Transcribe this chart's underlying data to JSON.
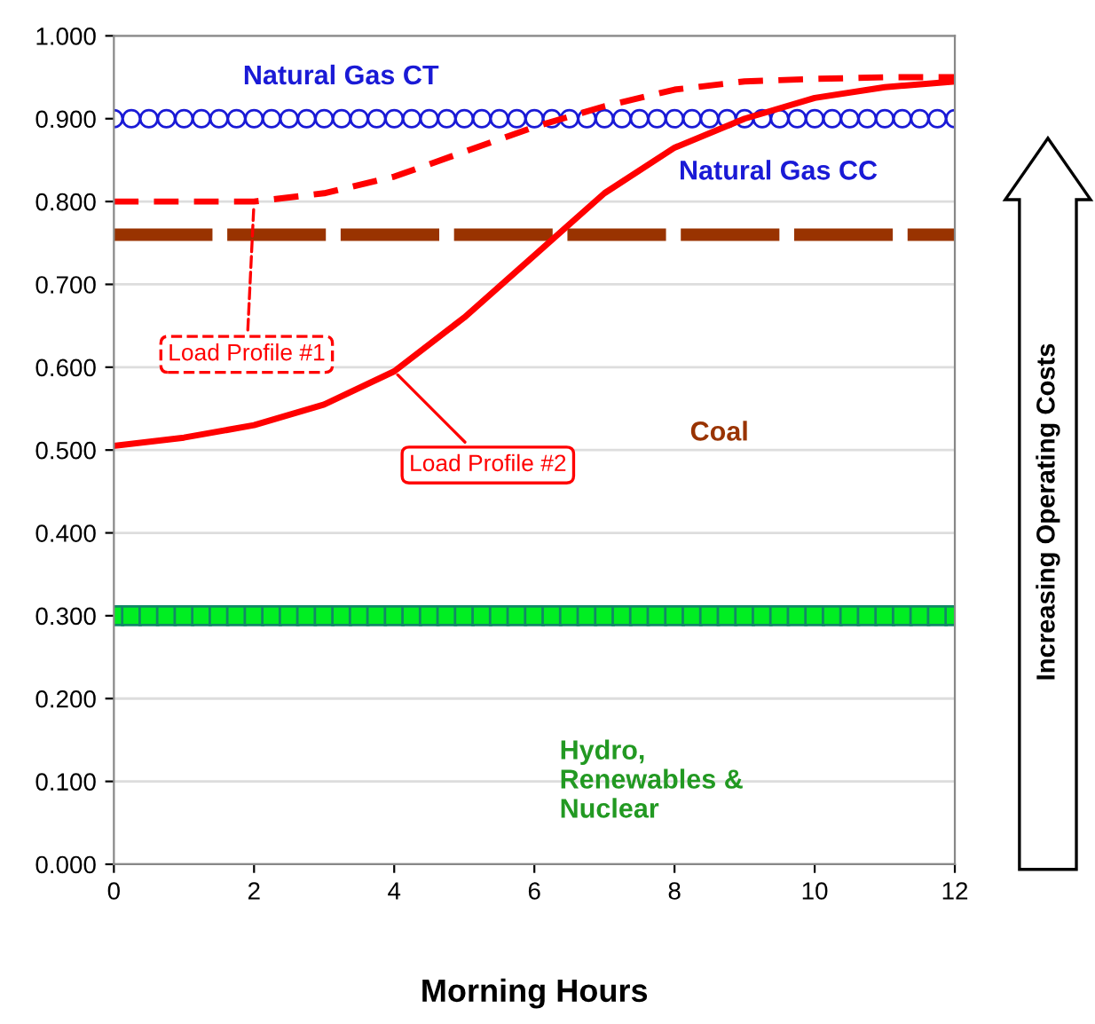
{
  "chart_data": {
    "type": "line",
    "xlabel": "Morning Hours",
    "xlim": [
      0,
      12
    ],
    "xticks": [
      0,
      2,
      4,
      6,
      8,
      10,
      12
    ],
    "ylim": [
      0,
      1
    ],
    "yticks": [
      {
        "value": 0,
        "label": "0.000"
      },
      {
        "value": 0.1,
        "label": "0.100"
      },
      {
        "value": 0.2,
        "label": "0.200"
      },
      {
        "value": 0.3,
        "label": "0.300"
      },
      {
        "value": 0.4,
        "label": "0.400"
      },
      {
        "value": 0.5,
        "label": "0.500"
      },
      {
        "value": 0.6,
        "label": "0.600"
      },
      {
        "value": 0.7,
        "label": "0.700"
      },
      {
        "value": 0.8,
        "label": "0.800"
      },
      {
        "value": 0.9,
        "label": "0.900"
      },
      {
        "value": 1,
        "label": "1.000"
      }
    ],
    "grid": "y",
    "legend": false,
    "series": [
      {
        "color": "#1a1ad6",
        "marker": "circle",
        "line_style": "solid",
        "x": [
          0,
          0.25,
          0.5,
          0.75,
          1,
          1.25,
          1.5,
          1.75,
          2,
          2.25,
          2.5,
          2.75,
          3,
          3.25,
          3.5,
          3.75,
          4,
          4.25,
          4.5,
          4.75,
          5,
          5.25,
          5.5,
          5.75,
          6,
          6.25,
          6.5,
          6.75,
          7,
          7.25,
          7.5,
          7.75,
          8,
          8.25,
          8.5,
          8.75,
          9,
          9.25,
          9.5,
          9.75,
          10,
          10.25,
          10.5,
          10.75,
          11,
          11.25,
          11.5,
          11.75,
          12
        ],
        "values": [
          0.9,
          0.9,
          0.9,
          0.9,
          0.9,
          0.9,
          0.9,
          0.9,
          0.9,
          0.9,
          0.9,
          0.9,
          0.9,
          0.9,
          0.9,
          0.9,
          0.9,
          0.9,
          0.9,
          0.9,
          0.9,
          0.9,
          0.9,
          0.9,
          0.9,
          0.9,
          0.9,
          0.9,
          0.9,
          0.9,
          0.9,
          0.9,
          0.9,
          0.9,
          0.9,
          0.9,
          0.9,
          0.9,
          0.9,
          0.9,
          0.9,
          0.9,
          0.9,
          0.9,
          0.9,
          0.9,
          0.9,
          0.9,
          0.9
        ]
      },
      {
        "color": "#993300",
        "marker": "none",
        "line_style": "dashed",
        "x": [
          0,
          12
        ],
        "values": [
          0.76,
          0.76
        ]
      },
      {
        "color": "#00ee22",
        "marker": "square",
        "line_style": "solid",
        "x": [
          0,
          0.25,
          0.5,
          0.75,
          1,
          1.25,
          1.5,
          1.75,
          2,
          2.25,
          2.5,
          2.75,
          3,
          3.25,
          3.5,
          3.75,
          4,
          4.25,
          4.5,
          4.75,
          5,
          5.25,
          5.5,
          5.75,
          6,
          6.25,
          6.5,
          6.75,
          7,
          7.25,
          7.5,
          7.75,
          8,
          8.25,
          8.5,
          8.75,
          9,
          9.25,
          9.5,
          9.75,
          10,
          10.25,
          10.5,
          10.75,
          11,
          11.25,
          11.5,
          11.75,
          12
        ],
        "values": [
          0.3,
          0.3,
          0.3,
          0.3,
          0.3,
          0.3,
          0.3,
          0.3,
          0.3,
          0.3,
          0.3,
          0.3,
          0.3,
          0.3,
          0.3,
          0.3,
          0.3,
          0.3,
          0.3,
          0.3,
          0.3,
          0.3,
          0.3,
          0.3,
          0.3,
          0.3,
          0.3,
          0.3,
          0.3,
          0.3,
          0.3,
          0.3,
          0.3,
          0.3,
          0.3,
          0.3,
          0.3,
          0.3,
          0.3,
          0.3,
          0.3,
          0.3,
          0.3,
          0.3,
          0.3,
          0.3,
          0.3,
          0.3,
          0.3
        ]
      },
      {
        "name": "Load Profile #1",
        "color": "#ff0000",
        "marker": "none",
        "line_style": "dashed",
        "x": [
          0,
          1,
          2,
          3,
          4,
          5,
          6,
          7,
          8,
          9,
          10,
          11,
          12
        ],
        "values": [
          0.8,
          0.8,
          0.8,
          0.81,
          0.83,
          0.86,
          0.89,
          0.915,
          0.935,
          0.945,
          0.948,
          0.95,
          0.95
        ]
      },
      {
        "name": "Load Profile #2",
        "color": "#ff0000",
        "marker": "none",
        "line_style": "solid",
        "x": [
          0,
          1,
          2,
          3,
          4,
          5,
          6,
          7,
          8,
          9,
          10,
          11,
          12
        ],
        "values": [
          0.505,
          0.515,
          0.53,
          0.555,
          0.595,
          0.66,
          0.735,
          0.81,
          0.865,
          0.9,
          0.925,
          0.938,
          0.945
        ]
      }
    ],
    "annotations": [
      "Natural Gas CT",
      "Natural Gas CC",
      "Coal",
      "Hydro,\nRenewables &\nNuclear",
      "Increasing Operating Costs"
    ]
  }
}
